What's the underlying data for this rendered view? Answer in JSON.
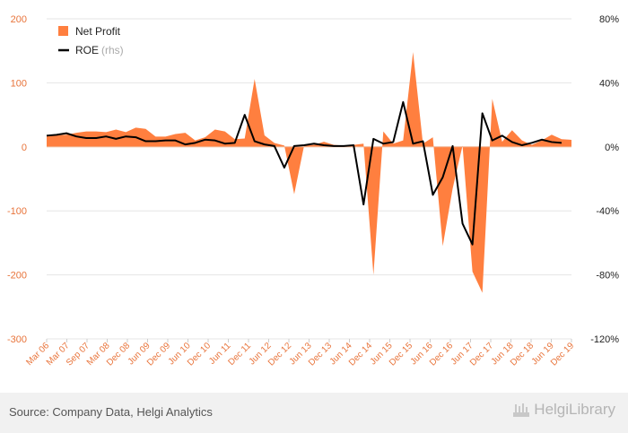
{
  "chart_data": {
    "type": "area+line",
    "title": "",
    "colors": {
      "net_profit": "#ff7f3f",
      "roe": "#000000",
      "axis_text": "#e8743b",
      "grid": "#e6e6e6"
    },
    "legend": {
      "position": "top-left",
      "items": [
        {
          "label": "Net Profit",
          "note": ""
        },
        {
          "label": "ROE",
          "note": "(rhs)"
        }
      ]
    },
    "y_left": {
      "ylim": [
        -300,
        200
      ],
      "ticks": [
        "200",
        "100",
        "0",
        "-100",
        "-200",
        "-300"
      ]
    },
    "y_right": {
      "ylim": [
        -120,
        80
      ],
      "ticks": [
        "80%",
        "40%",
        "0%",
        "-40%",
        "-80%",
        "-120%"
      ]
    },
    "x_ticks": [
      "Mar 06",
      "Mar 07",
      "Sep 07",
      "Mar 08",
      "Dec 08",
      "Jun 09",
      "Dec 09",
      "Jun 10",
      "Dec 10",
      "Jun 11",
      "Dec 11",
      "Jun 12",
      "Dec 12",
      "Jun 13",
      "Dec 13",
      "Jun 14",
      "Dec 14",
      "Jun 15",
      "Dec 15",
      "Jun 16",
      "Dec 16",
      "Jun 17",
      "Dec 17",
      "Jun 18",
      "Dec 18",
      "Jun 19",
      "Dec 19"
    ],
    "series": [
      {
        "name": "Net Profit",
        "axis": "left",
        "style": "area",
        "values": [
          17,
          18,
          19,
          22,
          24,
          24,
          23,
          27,
          23,
          30,
          28,
          16,
          16,
          20,
          22,
          10,
          15,
          27,
          24,
          12,
          13,
          106,
          18,
          6,
          2,
          -74,
          2,
          3,
          8,
          3,
          2,
          3,
          5,
          -200,
          24,
          5,
          10,
          148,
          5,
          15,
          -155,
          -65,
          2,
          -195,
          -228,
          75,
          8,
          26,
          10,
          3,
          10,
          19,
          12,
          11
        ]
      },
      {
        "name": "ROE",
        "axis": "right",
        "style": "line",
        "values": [
          7,
          7.5,
          8.5,
          6.5,
          5.5,
          5.5,
          6.5,
          5,
          6.5,
          6,
          3.5,
          3.5,
          4,
          4,
          1.5,
          2.5,
          4.5,
          4,
          2,
          2.5,
          20,
          3.5,
          1.5,
          0.5,
          -13,
          0.5,
          1,
          2,
          1,
          0.5,
          0.5,
          1,
          -36,
          5,
          2,
          3,
          28,
          2,
          3.5,
          -30,
          -19,
          0.5,
          -48,
          -61,
          21,
          4,
          7,
          3,
          1,
          2.5,
          4.5,
          3,
          2.5
        ]
      }
    ]
  },
  "footer": {
    "source": "Source: Company Data, Helgi Analytics",
    "brand": "HelgiLibrary"
  }
}
